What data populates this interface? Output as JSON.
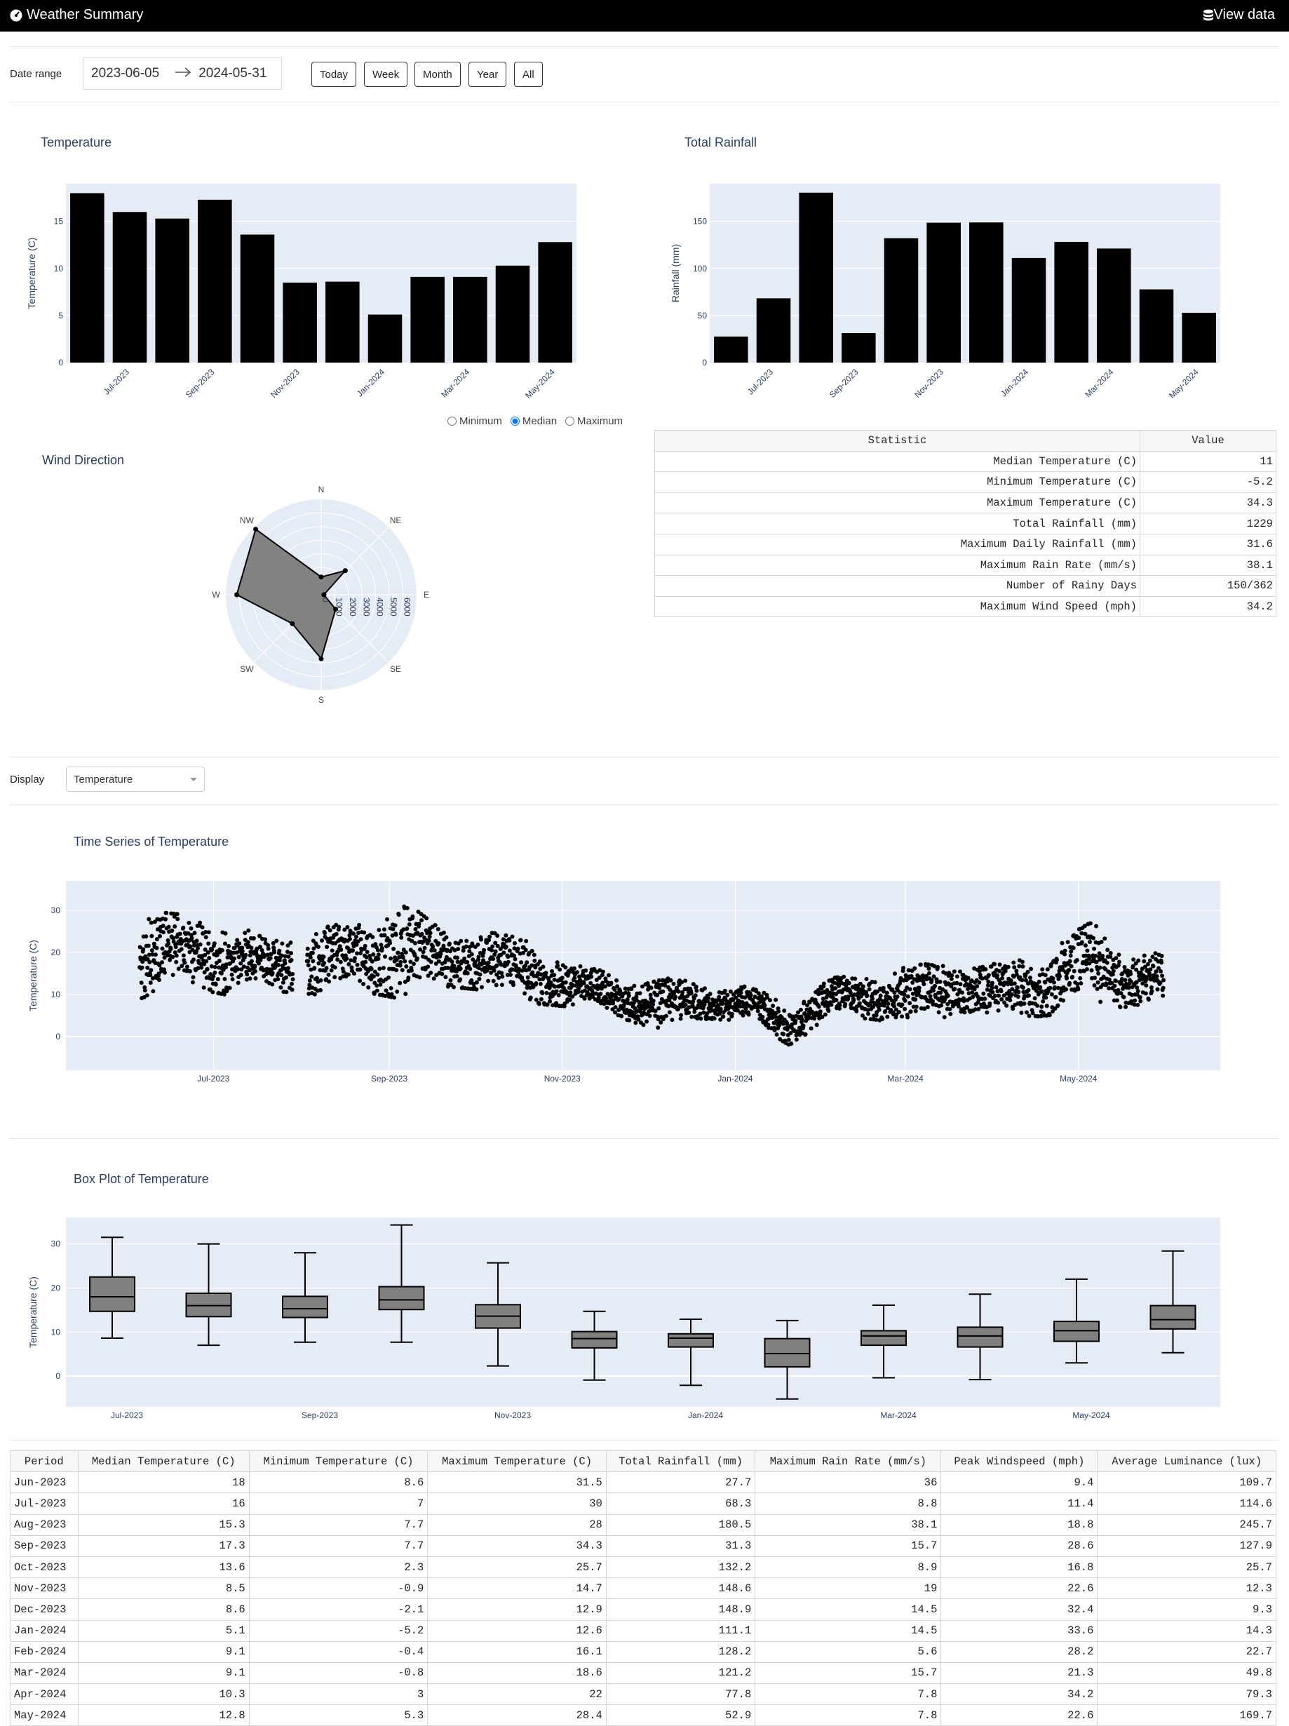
{
  "navbar": {
    "title": "Weather Summary",
    "view_data_label": "View data"
  },
  "controls": {
    "date_range_label": "Date range",
    "start_date": "2023-06-05",
    "end_date": "2024-05-31",
    "buttons": [
      "Today",
      "Week",
      "Month",
      "Year",
      "All"
    ],
    "display_label": "Display",
    "display_selected": "Temperature"
  },
  "temperature_chart": {
    "title": "Temperature",
    "radio_options": [
      "Minimum",
      "Median",
      "Maximum"
    ],
    "radio_selected": "Median"
  },
  "rainfall_chart": {
    "title": "Total Rainfall"
  },
  "wind_chart": {
    "title": "Wind Direction"
  },
  "timeseries_chart": {
    "title": "Time Series of Temperature"
  },
  "boxplot_chart": {
    "title": "Box Plot of Temperature"
  },
  "colors": {
    "plot_bg": "#e5ecf6",
    "bar": "#000000",
    "title": "#2a3f5f",
    "navbar": "#000000"
  },
  "chart_data": [
    {
      "id": "temperature",
      "type": "bar",
      "ylabel": "Temperature (C)",
      "categories": [
        "Jun-2023",
        "Jul-2023",
        "Aug-2023",
        "Sep-2023",
        "Oct-2023",
        "Nov-2023",
        "Dec-2023",
        "Jan-2024",
        "Feb-2024",
        "Mar-2024",
        "Apr-2024",
        "May-2024"
      ],
      "values": [
        18,
        16,
        15.3,
        17.3,
        13.6,
        8.5,
        8.6,
        5.1,
        9.1,
        9.1,
        10.3,
        12.8
      ],
      "yticks": [
        0,
        5,
        10,
        15
      ],
      "xticks": [
        "Jul-2023",
        "Sep-2023",
        "Nov-2023",
        "Jan-2024",
        "Mar-2024",
        "May-2024"
      ],
      "ylim": [
        0,
        19
      ]
    },
    {
      "id": "rainfall",
      "type": "bar",
      "ylabel": "Rainfall (mm)",
      "categories": [
        "Jun-2023",
        "Jul-2023",
        "Aug-2023",
        "Sep-2023",
        "Oct-2023",
        "Nov-2023",
        "Dec-2023",
        "Jan-2024",
        "Feb-2024",
        "Mar-2024",
        "Apr-2024",
        "May-2024"
      ],
      "values": [
        27.7,
        68.3,
        180.5,
        31.3,
        132.2,
        148.6,
        148.9,
        111.1,
        128.2,
        121.2,
        77.8,
        52.9
      ],
      "yticks": [
        0,
        50,
        100,
        150
      ],
      "xticks": [
        "Jul-2023",
        "Sep-2023",
        "Nov-2023",
        "Jan-2024",
        "Mar-2024",
        "May-2024"
      ],
      "ylim": [
        0,
        190
      ]
    },
    {
      "id": "wind",
      "type": "radar",
      "axes": [
        "N",
        "NE",
        "E",
        "SE",
        "S",
        "SW",
        "W",
        "NW"
      ],
      "values": [
        1300,
        2500,
        200,
        1500,
        4700,
        3000,
        6200,
        6800
      ],
      "radial_ticks": [
        "0",
        "1000",
        "2000",
        "3000",
        "4000",
        "5000",
        "6000"
      ],
      "rmax": 7000
    },
    {
      "id": "timeseries",
      "type": "scatter",
      "ylabel": "Temperature (C)",
      "yticks": [
        0,
        10,
        20,
        30
      ],
      "xticks": [
        "Jul-2023",
        "Sep-2023",
        "Nov-2023",
        "Jan-2024",
        "Mar-2024",
        "May-2024"
      ],
      "ylim": [
        -8,
        37
      ],
      "xlim": [
        "2023-05-10",
        "2024-06-20"
      ],
      "series_envelope": {
        "x": [
          "2023-06-05",
          "2023-06-20",
          "2023-07-05",
          "2023-07-20",
          "2023-08-05",
          "2023-08-20",
          "2023-09-05",
          "2023-09-20",
          "2023-10-05",
          "2023-10-20",
          "2023-11-05",
          "2023-11-20",
          "2023-12-05",
          "2023-12-20",
          "2024-01-05",
          "2024-01-20",
          "2024-02-05",
          "2024-02-20",
          "2024-03-05",
          "2024-03-20",
          "2024-04-05",
          "2024-04-20",
          "2024-05-05",
          "2024-05-20",
          "2024-05-31"
        ],
        "low": [
          9,
          12,
          10,
          11,
          10,
          11,
          9,
          12,
          11,
          8,
          7,
          5,
          1,
          4,
          4,
          -2,
          5,
          4,
          2,
          6,
          4,
          5,
          7,
          7,
          8
        ],
        "high": [
          30,
          29,
          28,
          23,
          26,
          27,
          33,
          25,
          25,
          23,
          17,
          15,
          14,
          13,
          12,
          8,
          14,
          15,
          17,
          18,
          17,
          21,
          27,
          22,
          19
        ]
      }
    },
    {
      "id": "boxplot",
      "type": "box",
      "ylabel": "Temperature (C)",
      "yticks": [
        0,
        10,
        20,
        30
      ],
      "xticks": [
        "Jul-2023",
        "Sep-2023",
        "Nov-2023",
        "Jan-2024",
        "Mar-2024",
        "May-2024"
      ],
      "ylim": [
        -7,
        36
      ],
      "boxes": [
        {
          "min": 8.6,
          "q1": 14.7,
          "median": 18,
          "q3": 22.5,
          "max": 31.5
        },
        {
          "min": 7,
          "q1": 13.5,
          "median": 16,
          "q3": 18.8,
          "max": 30
        },
        {
          "min": 7.7,
          "q1": 13.3,
          "median": 15.3,
          "q3": 18.1,
          "max": 28
        },
        {
          "min": 7.7,
          "q1": 15.1,
          "median": 17.3,
          "q3": 20.3,
          "max": 34.3
        },
        {
          "min": 2.3,
          "q1": 10.9,
          "median": 13.6,
          "q3": 16.2,
          "max": 25.7
        },
        {
          "min": -0.9,
          "q1": 6.4,
          "median": 8.5,
          "q3": 10.1,
          "max": 14.7
        },
        {
          "min": -2.1,
          "q1": 6.6,
          "median": 8.6,
          "q3": 9.6,
          "max": 12.9
        },
        {
          "min": -5.2,
          "q1": 2.1,
          "median": 5.1,
          "q3": 8.5,
          "max": 12.6
        },
        {
          "min": -0.4,
          "q1": 7,
          "median": 9.1,
          "q3": 10.3,
          "max": 16.1
        },
        {
          "min": -0.8,
          "q1": 6.6,
          "median": 9.1,
          "q3": 11.1,
          "max": 18.6
        },
        {
          "min": 3,
          "q1": 7.9,
          "median": 10.3,
          "q3": 12.4,
          "max": 22
        },
        {
          "min": 5.3,
          "q1": 10.7,
          "median": 12.8,
          "q3": 16,
          "max": 28.4
        }
      ]
    }
  ],
  "stats_table": {
    "headers": [
      "Statistic",
      "Value"
    ],
    "rows": [
      [
        "Median Temperature (C)",
        "11"
      ],
      [
        "Minimum Temperature (C)",
        "-5.2"
      ],
      [
        "Maximum Temperature (C)",
        "34.3"
      ],
      [
        "Total Rainfall (mm)",
        "1229"
      ],
      [
        "Maximum Daily Rainfall (mm)",
        "31.6"
      ],
      [
        "Maximum Rain Rate (mm/s)",
        "38.1"
      ],
      [
        "Number of Rainy Days",
        "150/362"
      ],
      [
        "Maximum Wind Speed (mph)",
        "34.2"
      ]
    ]
  },
  "monthly_table": {
    "headers": [
      "Period",
      "Median Temperature (C)",
      "Minimum Temperature (C)",
      "Maximum Temperature (C)",
      "Total Rainfall (mm)",
      "Maximum Rain Rate (mm/s)",
      "Peak Windspeed (mph)",
      "Average Luminance (lux)"
    ],
    "rows": [
      [
        "Jun-2023",
        "18",
        "8.6",
        "31.5",
        "27.7",
        "36",
        "9.4",
        "109.7"
      ],
      [
        "Jul-2023",
        "16",
        "7",
        "30",
        "68.3",
        "8.8",
        "11.4",
        "114.6"
      ],
      [
        "Aug-2023",
        "15.3",
        "7.7",
        "28",
        "180.5",
        "38.1",
        "18.8",
        "245.7"
      ],
      [
        "Sep-2023",
        "17.3",
        "7.7",
        "34.3",
        "31.3",
        "15.7",
        "28.6",
        "127.9"
      ],
      [
        "Oct-2023",
        "13.6",
        "2.3",
        "25.7",
        "132.2",
        "8.9",
        "16.8",
        "25.7"
      ],
      [
        "Nov-2023",
        "8.5",
        "-0.9",
        "14.7",
        "148.6",
        "19",
        "22.6",
        "12.3"
      ],
      [
        "Dec-2023",
        "8.6",
        "-2.1",
        "12.9",
        "148.9",
        "14.5",
        "32.4",
        "9.3"
      ],
      [
        "Jan-2024",
        "5.1",
        "-5.2",
        "12.6",
        "111.1",
        "14.5",
        "33.6",
        "14.3"
      ],
      [
        "Feb-2024",
        "9.1",
        "-0.4",
        "16.1",
        "128.2",
        "5.6",
        "28.2",
        "22.7"
      ],
      [
        "Mar-2024",
        "9.1",
        "-0.8",
        "18.6",
        "121.2",
        "15.7",
        "21.3",
        "49.8"
      ],
      [
        "Apr-2024",
        "10.3",
        "3",
        "22",
        "77.8",
        "7.8",
        "34.2",
        "79.3"
      ],
      [
        "May-2024",
        "12.8",
        "5.3",
        "28.4",
        "52.9",
        "7.8",
        "22.6",
        "169.7"
      ]
    ]
  }
}
